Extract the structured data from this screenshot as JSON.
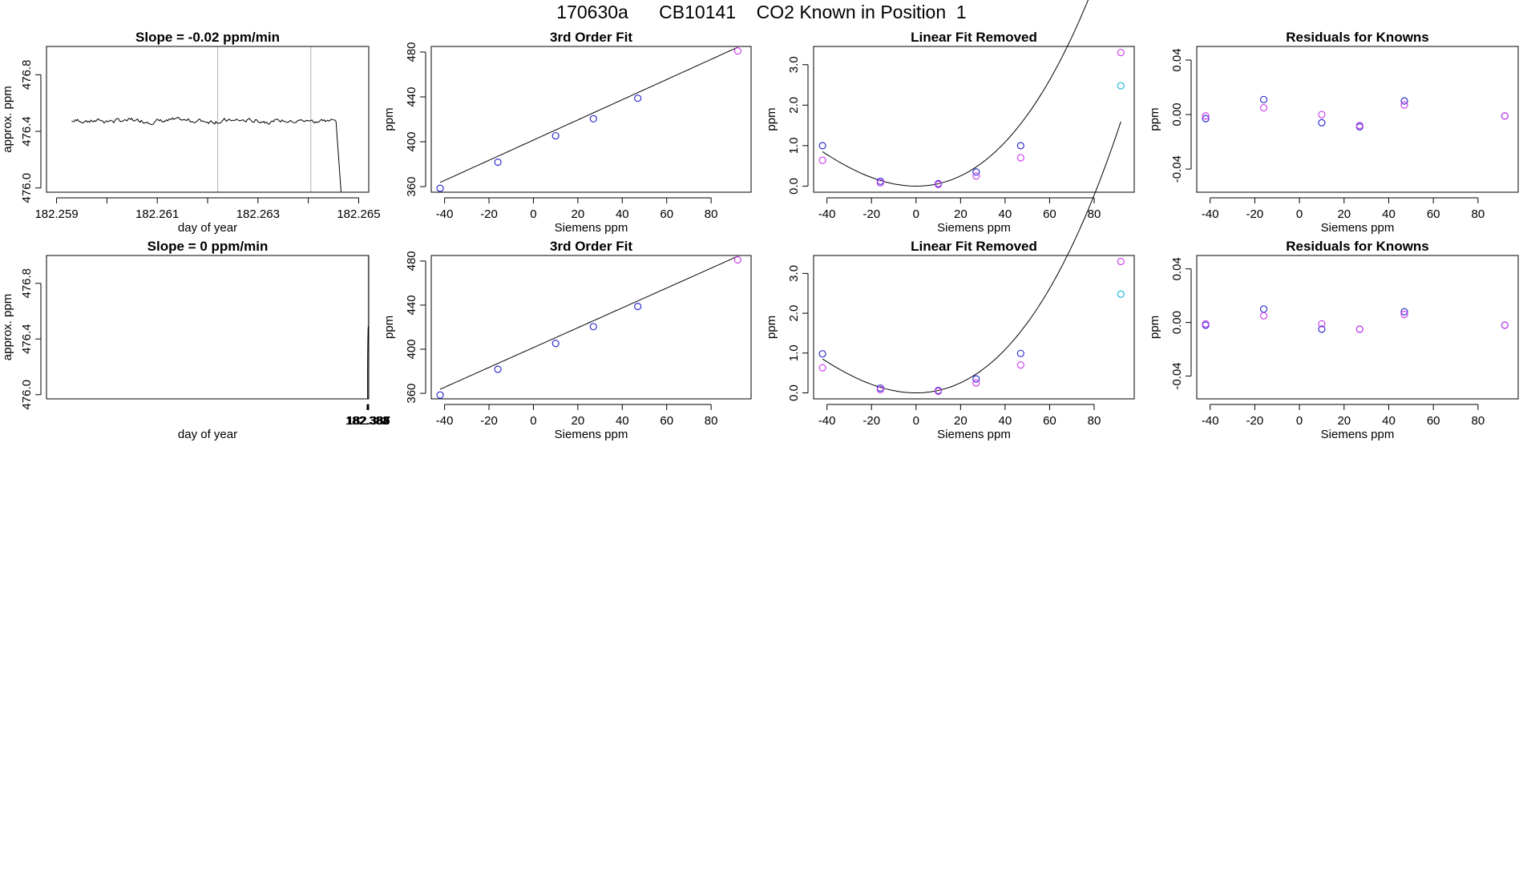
{
  "page": {
    "title": "170630a      CB10141    CO2 Known in Position  1"
  },
  "colors": {
    "line": "#000000",
    "vline": "#b3b3b3",
    "blue": "#2f2fd0",
    "magenta": "#cc44ee",
    "cyan": "#22b8d8"
  },
  "chart_data": [
    {
      "id": "r1c1",
      "type": "line",
      "title": "Slope =  -0.02  ppm/min",
      "xlabel": "day of year",
      "ylabel": "approx. ppm",
      "xlim": [
        182.2588,
        182.2652
      ],
      "ylim": [
        475.97,
        477.0
      ],
      "xticks": [
        182.259,
        182.26,
        182.261,
        182.262,
        182.263,
        182.264,
        182.265
      ],
      "xticklabels": [
        "182.259",
        "",
        "182.261",
        "",
        "182.263",
        "",
        "182.265"
      ],
      "yticks": [
        476.0,
        476.4,
        476.8
      ],
      "yticklabels": [
        "476.0",
        "476.4",
        "476.8"
      ],
      "vlines": [
        182.2622,
        182.26405
      ],
      "trace": {
        "x0": 182.2593,
        "x1": 182.26455,
        "mean": 476.475,
        "amp": 0.014,
        "seed": 7,
        "drop_x": 182.26465,
        "drop_to": 475.97
      }
    },
    {
      "id": "r1c2",
      "type": "scatter",
      "title": "3rd Order Fit",
      "xlabel": "Siemens ppm",
      "ylabel": "ppm",
      "xlim": [
        -46,
        98
      ],
      "ylim": [
        355,
        485
      ],
      "xticks": [
        -40,
        -20,
        0,
        20,
        40,
        60,
        80
      ],
      "xticklabels": [
        "-40",
        "-20",
        "0",
        "20",
        "40",
        "60",
        "80"
      ],
      "yticks": [
        360,
        400,
        440,
        480
      ],
      "yticklabels": [
        "360",
        "400",
        "440",
        "480"
      ],
      "curve": {
        "kind": "poly",
        "coef": [
          401.5,
          0.9
        ],
        "x0": -42,
        "x1": 92
      },
      "series": [
        {
          "color": "blue",
          "x": [
            -42,
            -16,
            10,
            27,
            47
          ],
          "y": [
            358.5,
            381.8,
            405.3,
            420.5,
            438.8
          ]
        },
        {
          "color": "magenta",
          "x": [
            92
          ],
          "y": [
            481
          ]
        }
      ]
    },
    {
      "id": "r1c3",
      "type": "scatter",
      "title": "Linear Fit Removed",
      "xlabel": "Siemens ppm",
      "ylabel": "ppm",
      "xlim": [
        -46,
        98
      ],
      "ylim": [
        -0.15,
        3.45
      ],
      "xticks": [
        -40,
        -20,
        0,
        20,
        40,
        60,
        80
      ],
      "xticklabels": [
        "-40",
        "-20",
        "0",
        "20",
        "40",
        "60",
        "80"
      ],
      "yticks": [
        0.0,
        1.0,
        2.0,
        3.0
      ],
      "yticklabels": [
        "0.0",
        "1.0",
        "2.0",
        "3.0"
      ],
      "curve": {
        "kind": "poly",
        "coef": [
          0,
          0,
          0.000584,
          2.4e-06
        ],
        "x0": -42,
        "x1": 92
      },
      "series": [
        {
          "color": "blue",
          "x": [
            -42,
            -16,
            10,
            27,
            47
          ],
          "y": [
            1.0,
            0.12,
            0.06,
            0.35,
            1.0
          ]
        },
        {
          "color": "magenta",
          "x": [
            -42,
            -16,
            10,
            27,
            47,
            92
          ],
          "y": [
            0.64,
            0.08,
            0.04,
            0.25,
            0.7,
            3.3
          ]
        },
        {
          "color": "cyan",
          "x": [
            92
          ],
          "y": [
            2.48
          ]
        }
      ]
    },
    {
      "id": "r1c4",
      "type": "scatter",
      "title": "Residuals for Knowns",
      "xlabel": "Siemens ppm",
      "ylabel": "ppm",
      "xlim": [
        -46,
        98
      ],
      "ylim": [
        -0.057,
        0.05
      ],
      "xticks": [
        -40,
        -20,
        0,
        20,
        40,
        60,
        80
      ],
      "xticklabels": [
        "-40",
        "-20",
        "0",
        "20",
        "40",
        "60",
        "80"
      ],
      "yticks": [
        -0.04,
        0.0,
        0.04
      ],
      "yticklabels": [
        "-0.04",
        "0.00",
        "0.04"
      ],
      "series": [
        {
          "color": "blue",
          "x": [
            -42,
            -16,
            10,
            27,
            47,
            92
          ],
          "y": [
            -0.003,
            0.011,
            -0.006,
            -0.009,
            0.01,
            -0.001
          ]
        },
        {
          "color": "magenta",
          "x": [
            -42,
            -16,
            10,
            27,
            47,
            92
          ],
          "y": [
            -0.001,
            0.005,
            0.0,
            -0.008,
            0.007,
            -0.001
          ]
        }
      ]
    },
    {
      "id": "r2c1",
      "type": "line",
      "title": "Slope =  0  ppm/min",
      "xlabel": "day of year",
      "ylabel": "approx. ppm",
      "xlim": [
        181.3818,
        182.3871
      ],
      "xlim_note": "",
      "ylim": [
        475.97,
        477.0
      ],
      "xticks": [
        182.382,
        182.383,
        182.384,
        182.385,
        182.386,
        182.387
      ],
      "xticklabels": [
        "182.382",
        "182.383",
        "182.384",
        "182.385",
        "182.386",
        "182.387"
      ],
      "yticks": [
        476.0,
        476.4,
        476.8
      ],
      "yticklabels": [
        "476.0",
        "476.4",
        "476.8"
      ],
      "vlines": [
        182.38525,
        182.38705
      ],
      "trace": {
        "rise": [
          [
            182.3835,
            475.97
          ],
          [
            182.3837,
            476.18
          ],
          [
            182.3839,
            476.28
          ],
          [
            182.3841,
            476.33
          ],
          [
            182.3843,
            476.38
          ],
          [
            182.3846,
            476.42
          ],
          [
            182.385,
            476.455
          ]
        ],
        "x0": 182.385,
        "x1": 182.38705,
        "mean": 476.47,
        "amp": 0.012,
        "seed": 13
      }
    },
    {
      "id": "r2c2",
      "type": "scatter",
      "title": "3rd Order Fit",
      "xlabel": "Siemens ppm",
      "ylabel": "ppm",
      "xlim": [
        -46,
        98
      ],
      "ylim": [
        355,
        485
      ],
      "xticks": [
        -40,
        -20,
        0,
        20,
        40,
        60,
        80
      ],
      "xticklabels": [
        "-40",
        "-20",
        "0",
        "20",
        "40",
        "60",
        "80"
      ],
      "yticks": [
        360,
        400,
        440,
        480
      ],
      "yticklabels": [
        "360",
        "400",
        "440",
        "480"
      ],
      "curve": {
        "kind": "poly",
        "coef": [
          401.5,
          0.9
        ],
        "x0": -42,
        "x1": 92
      },
      "series": [
        {
          "color": "blue",
          "x": [
            -42,
            -16,
            10,
            27,
            47
          ],
          "y": [
            358.5,
            381.8,
            405.3,
            420.5,
            438.8
          ]
        },
        {
          "color": "magenta",
          "x": [
            92
          ],
          "y": [
            481
          ]
        }
      ]
    },
    {
      "id": "r2c3",
      "type": "scatter",
      "title": "Linear Fit Removed",
      "xlabel": "Siemens ppm",
      "ylabel": "ppm",
      "xlim": [
        -46,
        98
      ],
      "ylim": [
        -0.15,
        3.45
      ],
      "xticks": [
        -40,
        -20,
        0,
        20,
        40,
        60,
        80
      ],
      "xticklabels": [
        "-40",
        "-20",
        "0",
        "20",
        "40",
        "60",
        "80"
      ],
      "yticks": [
        0.0,
        1.0,
        2.0,
        3.0
      ],
      "yticklabels": [
        "0.0",
        "1.0",
        "2.0",
        "3.0"
      ],
      "curve": {
        "kind": "poly",
        "coef": [
          0,
          0,
          0.000584,
          2.4e-06
        ],
        "x0": -42,
        "x1": 92
      },
      "series": [
        {
          "color": "blue",
          "x": [
            -42,
            -16,
            10,
            27,
            47
          ],
          "y": [
            0.98,
            0.12,
            0.06,
            0.35,
            0.99
          ]
        },
        {
          "color": "magenta",
          "x": [
            -42,
            -16,
            10,
            27,
            47,
            92
          ],
          "y": [
            0.63,
            0.08,
            0.04,
            0.25,
            0.7,
            3.3
          ]
        },
        {
          "color": "cyan",
          "x": [
            92
          ],
          "y": [
            2.48
          ]
        }
      ]
    },
    {
      "id": "r2c4",
      "type": "scatter",
      "title": "Residuals for Knowns",
      "xlabel": "Siemens ppm",
      "ylabel": "ppm",
      "xlim": [
        -46,
        98
      ],
      "ylim": [
        -0.057,
        0.05
      ],
      "xticks": [
        -40,
        -20,
        0,
        20,
        40,
        60,
        80
      ],
      "xticklabels": [
        "-40",
        "-20",
        "0",
        "20",
        "40",
        "60",
        "80"
      ],
      "yticks": [
        -0.04,
        0.0,
        0.04
      ],
      "yticklabels": [
        "-0.04",
        "0.00",
        "0.04"
      ],
      "series": [
        {
          "color": "blue",
          "x": [
            -42,
            -16,
            10,
            27,
            47,
            92
          ],
          "y": [
            -0.002,
            0.01,
            -0.005,
            -0.005,
            0.008,
            -0.002
          ]
        },
        {
          "color": "magenta",
          "x": [
            -42,
            -16,
            10,
            27,
            47,
            92
          ],
          "y": [
            -0.001,
            0.005,
            -0.001,
            -0.005,
            0.006,
            -0.002
          ]
        }
      ]
    }
  ]
}
